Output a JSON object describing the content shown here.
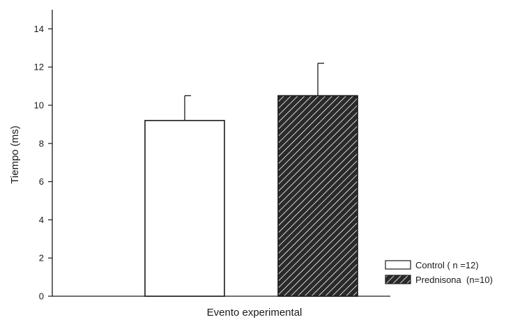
{
  "chart_data": {
    "type": "bar",
    "title": "",
    "xlabel": "Evento experimental",
    "ylabel": "Tiempo (ms)",
    "ylim": [
      0,
      15
    ],
    "yticks": [
      0,
      2,
      4,
      6,
      8,
      10,
      12,
      14
    ],
    "grid": false,
    "legend_position": "bottom-right",
    "series": [
      {
        "name": "Control ( n =12)",
        "value": 9.2,
        "error": 1.3,
        "fill": "#ffffff",
        "pattern": "none"
      },
      {
        "name": "Prednisona  (n=10)",
        "value": 10.5,
        "error": 1.7,
        "fill": "#2a2a2a",
        "pattern": "diagonal-hatch"
      }
    ]
  }
}
